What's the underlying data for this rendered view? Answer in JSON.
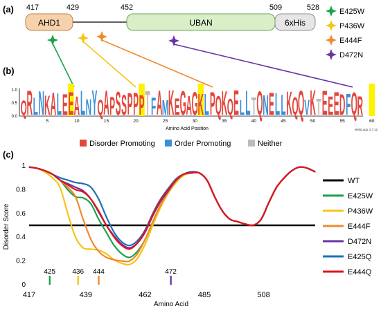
{
  "panel_a": {
    "label": "(a)",
    "positions": [
      "417",
      "429",
      "452",
      "509",
      "528"
    ],
    "domains": [
      {
        "name": "AHD1",
        "color": "#f6d2ac",
        "stroke": "#c07c43"
      },
      {
        "name": "UBAN",
        "color": "#d8efc8",
        "stroke": "#6aa457"
      },
      {
        "name": "6xHis",
        "color": "#e6e6e6",
        "stroke": "#8c8c8c"
      }
    ],
    "legend": [
      {
        "label": "E425W",
        "color": "#1aa24a",
        "icon": "star-4-point-icon"
      },
      {
        "label": "P436W",
        "color": "#f5c518",
        "icon": "star-4-point-icon"
      },
      {
        "label": "E444F",
        "color": "#ef8a2c",
        "icon": "star-4-point-icon"
      },
      {
        "label": "D472N",
        "color": "#6b35a5",
        "icon": "star-4-point-icon"
      }
    ]
  },
  "panel_b": {
    "label": "(b)",
    "ytick_labels": [
      "1.0",
      "0.5",
      "0.0"
    ],
    "xtick_labels": [
      "5",
      "10",
      "15",
      "20",
      "25",
      "30",
      "35",
      "40",
      "45",
      "50",
      "55",
      "60"
    ],
    "xlabel": "Amino Acid Position",
    "credit": "WebLogo 3.7.12",
    "logo_sequence": "QRLNKALEEALNYQAPSSPPPTFAMKEGAGKLPQKQELLTQNELLKQQVKTEEEDFQR",
    "legend": [
      {
        "label": "Disorder Promoting",
        "color": "#e3463c"
      },
      {
        "label": "Order Promoting",
        "color": "#3a8fd8"
      },
      {
        "label": "Neither",
        "color": "#bcbcbc"
      }
    ]
  },
  "panel_c": {
    "label": "(c)",
    "ylabel": "Disorder Score",
    "xlabel": "Amino Acid",
    "marker_labels": [
      "425",
      "436",
      "444",
      "472"
    ],
    "legend": [
      {
        "label": "WT",
        "color": "#000000"
      },
      {
        "label": "E425W",
        "color": "#1aa24a"
      },
      {
        "label": "P436W",
        "color": "#f5c518"
      },
      {
        "label": "E444F",
        "color": "#ef8a2c"
      },
      {
        "label": "D472N",
        "color": "#6b35a5"
      },
      {
        "label": "E425Q",
        "color": "#1f6fb5"
      },
      {
        "label": "E444Q",
        "color": "#e3131b"
      }
    ]
  },
  "chart_data": {
    "type": "line",
    "xlabel": "Amino Acid",
    "ylabel": "Disorder Score",
    "xlim": [
      417,
      528
    ],
    "ylim": [
      0,
      1
    ],
    "xticks": [
      417,
      439,
      462,
      485,
      508
    ],
    "yticks": [
      0,
      0.2,
      0.4,
      0.6,
      0.8,
      1
    ],
    "threshold": {
      "name": "WT",
      "value": 0.5
    },
    "series": [
      {
        "name": "E425W",
        "color": "#1aa24a",
        "x": [
          417,
          420,
          423,
          426,
          429,
          432,
          435,
          438,
          441,
          444,
          447,
          450,
          453,
          456,
          459,
          462,
          465,
          468,
          471,
          474,
          477,
          480,
          483,
          486,
          489,
          492,
          495,
          498,
          501,
          504,
          507,
          510,
          513,
          516,
          519,
          522,
          525,
          528
        ],
        "y": [
          0.99,
          0.98,
          0.96,
          0.93,
          0.88,
          0.8,
          0.74,
          0.73,
          0.68,
          0.55,
          0.44,
          0.33,
          0.26,
          0.23,
          0.28,
          0.38,
          0.53,
          0.67,
          0.78,
          0.87,
          0.93,
          0.94,
          0.94,
          0.88,
          0.74,
          0.62,
          0.55,
          0.53,
          0.51,
          0.5,
          0.55,
          0.69,
          0.82,
          0.9,
          0.96,
          0.99,
          0.98,
          0.95
        ]
      },
      {
        "name": "P436W",
        "color": "#f5c518",
        "x": [
          417,
          420,
          423,
          426,
          429,
          432,
          435,
          438,
          441,
          444,
          447,
          450,
          453,
          456,
          459,
          462,
          465,
          468,
          471,
          474,
          477,
          480,
          483,
          486,
          489,
          492,
          495,
          498,
          501,
          504,
          507,
          510,
          513,
          516,
          519,
          522,
          525,
          528
        ],
        "y": [
          0.99,
          0.98,
          0.95,
          0.9,
          0.82,
          0.6,
          0.4,
          0.31,
          0.3,
          0.29,
          0.26,
          0.21,
          0.18,
          0.17,
          0.22,
          0.34,
          0.5,
          0.65,
          0.77,
          0.86,
          0.92,
          0.94,
          0.94,
          0.88,
          0.74,
          0.62,
          0.55,
          0.53,
          0.51,
          0.5,
          0.55,
          0.69,
          0.82,
          0.9,
          0.96,
          0.99,
          0.98,
          0.95
        ]
      },
      {
        "name": "E444F",
        "color": "#ef8a2c",
        "x": [
          417,
          420,
          423,
          426,
          429,
          432,
          435,
          438,
          441,
          444,
          447,
          450,
          453,
          456,
          459,
          462,
          465,
          468,
          471,
          474,
          477,
          480,
          483,
          486,
          489,
          492,
          495,
          498,
          501,
          504,
          507,
          510,
          513,
          516,
          519,
          522,
          525,
          528
        ],
        "y": [
          0.99,
          0.98,
          0.96,
          0.93,
          0.88,
          0.82,
          0.74,
          0.55,
          0.38,
          0.28,
          0.23,
          0.21,
          0.2,
          0.2,
          0.26,
          0.38,
          0.53,
          0.67,
          0.78,
          0.87,
          0.93,
          0.94,
          0.94,
          0.88,
          0.74,
          0.62,
          0.55,
          0.53,
          0.51,
          0.5,
          0.55,
          0.69,
          0.82,
          0.9,
          0.96,
          0.99,
          0.98,
          0.95
        ]
      },
      {
        "name": "D472N",
        "color": "#6b35a5",
        "x": [
          417,
          420,
          423,
          426,
          429,
          432,
          435,
          438,
          441,
          444,
          447,
          450,
          453,
          456,
          459,
          462,
          465,
          468,
          471,
          474,
          477,
          480,
          483,
          486,
          489,
          492,
          495,
          498,
          501,
          504,
          507,
          510,
          513,
          516,
          519,
          522,
          525,
          528
        ],
        "y": [
          0.99,
          0.98,
          0.96,
          0.93,
          0.88,
          0.85,
          0.82,
          0.79,
          0.72,
          0.61,
          0.5,
          0.41,
          0.34,
          0.31,
          0.35,
          0.44,
          0.58,
          0.7,
          0.79,
          0.88,
          0.93,
          0.95,
          0.94,
          0.88,
          0.74,
          0.62,
          0.55,
          0.53,
          0.51,
          0.5,
          0.55,
          0.69,
          0.82,
          0.9,
          0.96,
          0.99,
          0.98,
          0.95
        ]
      },
      {
        "name": "E425Q",
        "color": "#1f6fb5",
        "x": [
          417,
          420,
          423,
          426,
          429,
          432,
          435,
          438,
          441,
          444,
          447,
          450,
          453,
          456,
          459,
          462,
          465,
          468,
          471,
          474,
          477,
          480,
          483,
          486,
          489,
          492,
          495,
          498,
          501,
          504,
          507,
          510,
          513,
          516,
          519,
          522,
          525,
          528
        ],
        "y": [
          0.99,
          0.98,
          0.96,
          0.93,
          0.9,
          0.88,
          0.86,
          0.85,
          0.82,
          0.72,
          0.57,
          0.44,
          0.36,
          0.33,
          0.37,
          0.46,
          0.6,
          0.72,
          0.81,
          0.89,
          0.93,
          0.94,
          0.94,
          0.88,
          0.74,
          0.62,
          0.55,
          0.53,
          0.51,
          0.5,
          0.55,
          0.69,
          0.82,
          0.9,
          0.96,
          0.99,
          0.98,
          0.95
        ]
      },
      {
        "name": "E444Q",
        "color": "#e3131b",
        "x": [
          417,
          420,
          423,
          426,
          429,
          432,
          435,
          438,
          441,
          444,
          447,
          450,
          453,
          456,
          459,
          462,
          465,
          468,
          471,
          474,
          477,
          480,
          483,
          486,
          489,
          492,
          495,
          498,
          501,
          504,
          507,
          510,
          513,
          516,
          519,
          522,
          525,
          528
        ],
        "y": [
          0.99,
          0.98,
          0.96,
          0.93,
          0.88,
          0.84,
          0.8,
          0.78,
          0.72,
          0.62,
          0.5,
          0.4,
          0.33,
          0.3,
          0.35,
          0.45,
          0.59,
          0.71,
          0.8,
          0.88,
          0.93,
          0.94,
          0.94,
          0.88,
          0.74,
          0.62,
          0.55,
          0.53,
          0.51,
          0.5,
          0.55,
          0.69,
          0.82,
          0.9,
          0.96,
          0.99,
          0.98,
          0.95
        ]
      }
    ],
    "markers": [
      {
        "label": "425",
        "x": 425,
        "color": "#1aa24a"
      },
      {
        "label": "436",
        "x": 436,
        "color": "#f5c518"
      },
      {
        "label": "444",
        "x": 444,
        "color": "#ef8a2c"
      },
      {
        "label": "472",
        "x": 472,
        "color": "#6b35a5"
      }
    ]
  }
}
